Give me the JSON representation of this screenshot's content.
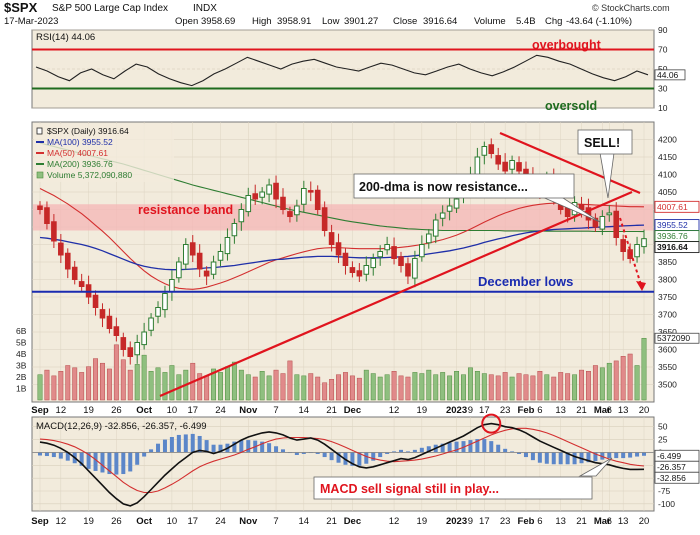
{
  "header": {
    "symbol": "$SPX",
    "name": "S&P 500 Large Cap Index",
    "exchange": "INDX",
    "date": "17-Mar-2023",
    "open_label": "Open",
    "open": "3958.69",
    "high_label": "High",
    "high": "3958.91",
    "low_label": "Low",
    "low": "3901.27",
    "close_label": "Close",
    "close": "3916.64",
    "volume_label": "Volume",
    "volume": "5.4B",
    "chg_label": "Chg",
    "chg": "-43.64 (-1.10%)",
    "source": "© StockCharts.com"
  },
  "colors": {
    "panel_bg": "#f2ebdc",
    "up": "#2e7d32",
    "down": "#c62828",
    "ma100": "#1f2fa8",
    "ma50": "#d32f2f",
    "ma200": "#2e7d32",
    "annot": "#e0141e",
    "lows": "#1a2bb0"
  },
  "rsi": {
    "title": "RSI(14) 44.06",
    "label": "44.06",
    "overbought": "overbought",
    "oversold": "oversold",
    "ylim": [
      10,
      90
    ],
    "ticks": [
      10,
      30,
      50,
      70,
      90
    ],
    "levels": [
      30,
      70
    ],
    "values": [
      52,
      48,
      42,
      38,
      46,
      50,
      44,
      40,
      48,
      55,
      52,
      45,
      40,
      36,
      33,
      38,
      45,
      50,
      56,
      62,
      58,
      54,
      50,
      55,
      58,
      60,
      56,
      52,
      50,
      48,
      52,
      56,
      54,
      50,
      46,
      44,
      48,
      52,
      55,
      50,
      46,
      43,
      47,
      52,
      58,
      64,
      62,
      58,
      55,
      50,
      45,
      41,
      38,
      42,
      48,
      44
    ]
  },
  "price": {
    "legend": [
      {
        "label": "$SPX (Daily) 3916.64",
        "color": "#222222"
      },
      {
        "label": "MA(100) 3955.52",
        "color": "#1f2fa8"
      },
      {
        "label": "MA(50) 4007.61",
        "color": "#d32f2f"
      },
      {
        "label": "MA(200) 3936.76",
        "color": "#2e7d32"
      },
      {
        "label": "Volume 5,372,090,880",
        "color": "#2e7d32"
      }
    ],
    "ylim": [
      3450,
      4250
    ],
    "ticks": [
      3500,
      3550,
      3600,
      3650,
      3700,
      3750,
      3800,
      3850,
      3900,
      3950,
      4000,
      4050,
      4100,
      4150,
      4200
    ],
    "price_tags": [
      {
        "label": "4007.61",
        "value": 4007.61,
        "color": "#d32f2f"
      },
      {
        "label": "3955.52",
        "value": 3955.52,
        "color": "#1f2fa8"
      },
      {
        "label": "3936.76",
        "value": 3936.76,
        "color": "#2e7d32"
      },
      {
        "label": "3916.64",
        "value": 3916.64,
        "color": "#222222"
      }
    ],
    "vol_ticks": [
      "1B",
      "2B",
      "3B",
      "4B",
      "5B",
      "6B"
    ],
    "vol_tag": "5372090",
    "closes": [
      4000,
      3960,
      3910,
      3870,
      3830,
      3800,
      3780,
      3750,
      3720,
      3690,
      3660,
      3640,
      3600,
      3580,
      3620,
      3650,
      3690,
      3720,
      3760,
      3800,
      3850,
      3900,
      3870,
      3830,
      3810,
      3850,
      3880,
      3920,
      3960,
      4000,
      4040,
      4030,
      4050,
      4070,
      4030,
      4000,
      3980,
      4010,
      4060,
      4050,
      4000,
      3940,
      3900,
      3870,
      3840,
      3820,
      3810,
      3840,
      3860,
      3880,
      3900,
      3860,
      3840,
      3810,
      3860,
      3900,
      3930,
      3970,
      3990,
      4010,
      4030,
      4050,
      4100,
      4150,
      4180,
      4160,
      4130,
      4110,
      4140,
      4110,
      4090,
      4060,
      4050,
      4090,
      4040,
      4000,
      3980,
      4020,
      4000,
      3970,
      3950,
      3980,
      3990,
      3920,
      3880,
      3860,
      3900,
      3916.64
    ],
    "ma100": [
      3920,
      3918,
      3915,
      3912,
      3908,
      3904,
      3900,
      3895,
      3889,
      3882,
      3874,
      3866,
      3858,
      3850,
      3843,
      3838,
      3834,
      3831,
      3829,
      3828,
      3828,
      3829,
      3830,
      3831,
      3833,
      3834,
      3836,
      3838,
      3840,
      3843,
      3846,
      3849,
      3852,
      3855,
      3857,
      3858,
      3860,
      3862,
      3864,
      3865,
      3866,
      3866,
      3866,
      3865,
      3864,
      3863,
      3862,
      3862,
      3862,
      3862,
      3863,
      3864,
      3865,
      3866,
      3868,
      3870,
      3873,
      3876,
      3879,
      3882,
      3886,
      3890,
      3895,
      3900,
      3906,
      3911,
      3916,
      3920,
      3925,
      3929,
      3933,
      3936,
      3939,
      3941,
      3943,
      3944,
      3945,
      3946,
      3947,
      3948,
      3949,
      3950,
      3951,
      3952,
      3953,
      3954,
      3955,
      3955.52
    ],
    "ma50": [
      4060,
      4050,
      4040,
      4028,
      4016,
      4002,
      3988,
      3972,
      3955,
      3938,
      3920,
      3900,
      3880,
      3860,
      3842,
      3825,
      3810,
      3798,
      3788,
      3780,
      3775,
      3773,
      3772,
      3774,
      3778,
      3784,
      3790,
      3797,
      3805,
      3813,
      3822,
      3831,
      3840,
      3849,
      3856,
      3862,
      3868,
      3874,
      3879,
      3884,
      3888,
      3890,
      3891,
      3891,
      3890,
      3889,
      3888,
      3888,
      3888,
      3888,
      3889,
      3890,
      3892,
      3894,
      3897,
      3900,
      3904,
      3909,
      3914,
      3920,
      3927,
      3935,
      3944,
      3954,
      3964,
      3973,
      3982,
      3990,
      3997,
      4003,
      4008,
      4012,
      4015,
      4017,
      4018,
      4018,
      4017,
      4016,
      4015,
      4014,
      4013,
      4012,
      4011,
      4010,
      4009,
      4008,
      4008,
      4007.61
    ],
    "ma200": [
      4190,
      4185,
      4180,
      4175,
      4170,
      4165,
      4160,
      4155,
      4150,
      4145,
      4140,
      4135,
      4130,
      4124,
      4118,
      4112,
      4106,
      4100,
      4094,
      4088,
      4082,
      4076,
      4070,
      4065,
      4060,
      4055,
      4050,
      4045,
      4040,
      4035,
      4030,
      4025,
      4020,
      4015,
      4010,
      4005,
      4000,
      3996,
      3992,
      3988,
      3984,
      3980,
      3976,
      3972,
      3968,
      3965,
      3962,
      3959,
      3956,
      3953,
      3951,
      3949,
      3947,
      3945,
      3944,
      3943,
      3942,
      3941,
      3940,
      3940,
      3940,
      3940,
      3940,
      3940,
      3940,
      3940,
      3940,
      3939,
      3939,
      3939,
      3939,
      3939,
      3939,
      3938,
      3938,
      3938,
      3938,
      3938,
      3938,
      3938,
      3937,
      3937,
      3937,
      3937,
      3937,
      3937,
      3937,
      3936.76
    ],
    "volumes": [
      2.2,
      2.6,
      2.1,
      2.5,
      3.0,
      2.8,
      2.4,
      2.9,
      3.6,
      3.2,
      2.7,
      4.8,
      3.5,
      2.6,
      3.1,
      3.9,
      2.5,
      2.8,
      2.4,
      3.0,
      2.2,
      2.6,
      3.2,
      2.3,
      2.1,
      2.7,
      2.4,
      2.9,
      3.3,
      2.6,
      2.2,
      2.0,
      2.5,
      2.1,
      2.6,
      2.3,
      3.4,
      2.2,
      2.1,
      2.3,
      2.0,
      1.5,
      1.8,
      2.2,
      2.4,
      2.1,
      1.9,
      2.6,
      2.3,
      2.0,
      2.2,
      2.5,
      2.1,
      2.0,
      2.4,
      2.3,
      2.6,
      2.2,
      2.4,
      2.1,
      2.5,
      2.2,
      2.8,
      2.5,
      2.3,
      2.2,
      2.1,
      2.4,
      2.0,
      2.3,
      2.2,
      2.1,
      2.5,
      2.2,
      2.0,
      2.4,
      2.3,
      2.2,
      2.6,
      2.5,
      3.0,
      2.8,
      3.2,
      3.4,
      3.8,
      4.0,
      3.0,
      5.37
    ],
    "resistance_band": {
      "label": "resistance band",
      "low": 3940,
      "high": 4015
    },
    "december_lows": {
      "label": "December lows",
      "value": 3765
    },
    "callouts": {
      "dma": "200-dma is now resistance...",
      "sell": "SELL!"
    }
  },
  "macd": {
    "title": "MACD(12,26,9) -32.856, -26.357, -6.499",
    "ylim": [
      -110,
      65
    ],
    "ticks": [
      50,
      25,
      0,
      -25,
      -50,
      -75,
      -100
    ],
    "tags": [
      {
        "label": "-6.499",
        "value": -6.499
      },
      {
        "label": "-26.357",
        "value": -26.357
      },
      {
        "label": "-32.856",
        "value": -32.856
      }
    ],
    "callout": "MACD sell signal still in play...",
    "macd_line": [
      20,
      18,
      14,
      8,
      0,
      -10,
      -22,
      -36,
      -50,
      -64,
      -78,
      -90,
      -100,
      -104,
      -98,
      -86,
      -72,
      -58,
      -44,
      -32,
      -20,
      -10,
      0,
      4,
      2,
      -2,
      2,
      8,
      16,
      24,
      30,
      34,
      38,
      40,
      38,
      34,
      28,
      24,
      26,
      28,
      24,
      16,
      6,
      -4,
      -14,
      -22,
      -28,
      -30,
      -28,
      -24,
      -20,
      -16,
      -12,
      -14,
      -10,
      -4,
      2,
      8,
      14,
      20,
      26,
      32,
      40,
      48,
      54,
      56,
      54,
      50,
      48,
      44,
      38,
      30,
      22,
      16,
      10,
      4,
      -2,
      -8,
      -12,
      -16,
      -20,
      -22,
      -24,
      -28,
      -31,
      -33,
      -33,
      -32.856
    ],
    "signal_line": [
      26,
      25,
      23,
      20,
      16,
      11,
      4,
      -4,
      -14,
      -25,
      -36,
      -47,
      -58,
      -67,
      -74,
      -78,
      -78,
      -75,
      -69,
      -62,
      -54,
      -45,
      -36,
      -28,
      -22,
      -17,
      -13,
      -9,
      -5,
      0,
      6,
      11,
      17,
      22,
      26,
      28,
      29,
      29,
      29,
      28,
      27,
      25,
      21,
      16,
      10,
      4,
      -2,
      -8,
      -12,
      -15,
      -17,
      -18,
      -17,
      -16,
      -15,
      -13,
      -10,
      -7,
      -3,
      1,
      5,
      10,
      16,
      22,
      28,
      34,
      39,
      43,
      46,
      47,
      47,
      45,
      42,
      38,
      33,
      27,
      21,
      15,
      9,
      3,
      -3,
      -8,
      -13,
      -17,
      -20,
      -23,
      -25,
      -26.357
    ],
    "xlabels": [
      {
        "label": "Sep",
        "index": 0
      },
      {
        "label": "12",
        "index": 3
      },
      {
        "label": "19",
        "index": 7
      },
      {
        "label": "26",
        "index": 11
      },
      {
        "label": "Oct",
        "index": 15
      },
      {
        "label": "10",
        "index": 19
      },
      {
        "label": "17",
        "index": 22
      },
      {
        "label": "24",
        "index": 26
      },
      {
        "label": "Nov",
        "index": 30
      },
      {
        "label": "7",
        "index": 34
      },
      {
        "label": "14",
        "index": 38
      },
      {
        "label": "21",
        "index": 42
      },
      {
        "label": "Dec",
        "index": 45
      },
      {
        "label": "12",
        "index": 51
      },
      {
        "label": "19",
        "index": 55
      },
      {
        "label": "2023",
        "index": 60
      },
      {
        "label": "9",
        "index": 62
      },
      {
        "label": "17",
        "index": 64
      },
      {
        "label": "23",
        "index": 67
      },
      {
        "label": "Feb",
        "index": 70
      },
      {
        "label": "6",
        "index": 72
      },
      {
        "label": "13",
        "index": 75
      },
      {
        "label": "21",
        "index": 78
      },
      {
        "label": "Mar",
        "index": 81
      },
      {
        "label": "6",
        "index": 82
      },
      {
        "label": "13",
        "index": 84
      },
      {
        "label": "20",
        "index": 87
      }
    ]
  }
}
